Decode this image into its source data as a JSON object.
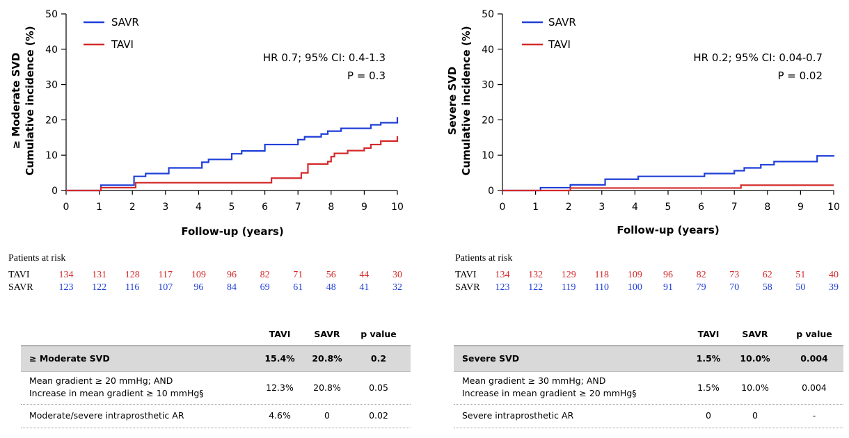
{
  "colors": {
    "savr": "#1f3fd8",
    "tavi": "#d42a2a",
    "axis": "#000000"
  },
  "chart_data": [
    {
      "type": "line",
      "subtype": "kaplan-meier step",
      "ylabel_line1": "≥ Moderate SVD",
      "ylabel_line2": "Cumulative incidence (%)",
      "xlabel": "Follow-up (years)",
      "xlim": [
        0,
        10
      ],
      "ylim": [
        0,
        50
      ],
      "xticks": [
        0,
        1,
        2,
        3,
        4,
        5,
        6,
        7,
        8,
        9,
        10
      ],
      "yticks": [
        0,
        10,
        20,
        30,
        40,
        50
      ],
      "legend_position": "top-left",
      "annotation_line1": "HR 0.7; 95% CI: 0.4-1.3",
      "annotation_line2": "P = 0.3",
      "series": [
        {
          "name": "SAVR",
          "color": "#1f3fd8",
          "x": [
            0,
            1.0,
            1.05,
            2.0,
            2.05,
            2.3,
            2.4,
            3.0,
            3.1,
            4.0,
            4.1,
            4.3,
            4.8,
            5.0,
            5.3,
            5.9,
            6.0,
            6.8,
            7.0,
            7.2,
            7.7,
            7.9,
            8.3,
            9.0,
            9.2,
            9.5,
            10.0
          ],
          "y": [
            0,
            0,
            1.5,
            1.5,
            4.0,
            4.0,
            4.8,
            4.8,
            6.4,
            6.4,
            8.0,
            8.8,
            8.8,
            10.4,
            11.2,
            11.2,
            13.0,
            13.0,
            14.4,
            15.2,
            16.0,
            16.8,
            17.6,
            17.6,
            18.6,
            19.2,
            20.8
          ]
        },
        {
          "name": "TAVI",
          "color": "#d42a2a",
          "x": [
            0,
            1.0,
            1.05,
            2.0,
            2.1,
            6.0,
            6.2,
            7.0,
            7.1,
            7.3,
            7.9,
            8.0,
            8.1,
            8.5,
            9.0,
            9.2,
            9.5,
            10.0
          ],
          "y": [
            0,
            0,
            0.8,
            0.8,
            2.2,
            2.2,
            3.5,
            3.5,
            5.0,
            7.5,
            8.2,
            9.6,
            10.5,
            11.3,
            12.0,
            13.0,
            14.0,
            15.4
          ]
        }
      ],
      "risk_table": {
        "title": "Patients at risk",
        "rows": [
          {
            "label": "TAVI",
            "color": "#d42a2a",
            "values": [
              "134",
              "131",
              "128",
              "117",
              "109",
              "96",
              "82",
              "71",
              "56",
              "44",
              "30"
            ]
          },
          {
            "label": "SAVR",
            "color": "#1f3fd8",
            "values": [
              "123",
              "122",
              "116",
              "107",
              "96",
              "84",
              "69",
              "61",
              "48",
              "41",
              "32"
            ]
          }
        ]
      },
      "summary_table": {
        "headers": [
          "TAVI",
          "SAVR",
          "p value"
        ],
        "rows": [
          {
            "label": "≥ Moderate SVD",
            "label2": "",
            "values": [
              "15.4%",
              "20.8%",
              "0.2"
            ],
            "bold": true
          },
          {
            "label": "Mean gradient ≥ 20 mmHg; AND",
            "label2": "Increase in mean gradient ≥ 10 mmHg§",
            "values": [
              "12.3%",
              "20.8%",
              "0.05"
            ],
            "bold": false
          },
          {
            "label": "Moderate/severe intraprosthetic AR",
            "label2": "",
            "values": [
              "4.6%",
              "0",
              "0.02"
            ],
            "bold": false
          }
        ]
      }
    },
    {
      "type": "line",
      "subtype": "kaplan-meier step",
      "ylabel_line1": "Severe SVD",
      "ylabel_line2": "Cumulative incidence (%)",
      "xlabel": "Follow-up (years)",
      "xlim": [
        0,
        10
      ],
      "ylim": [
        0,
        50
      ],
      "xticks": [
        0,
        1,
        2,
        3,
        4,
        5,
        6,
        7,
        8,
        9,
        10
      ],
      "yticks": [
        0,
        10,
        20,
        30,
        40,
        50
      ],
      "legend_position": "top-left",
      "annotation_line1": "HR 0.2; 95% CI: 0.04-0.7",
      "annotation_line2": "P = 0.02",
      "series": [
        {
          "name": "SAVR",
          "color": "#1f3fd8",
          "x": [
            0,
            1.1,
            1.15,
            2.0,
            2.05,
            3.0,
            3.1,
            4.0,
            4.1,
            6.0,
            6.1,
            6.8,
            7.0,
            7.3,
            7.8,
            8.2,
            9.3,
            9.5,
            10.0
          ],
          "y": [
            0,
            0,
            0.8,
            0.8,
            1.6,
            1.6,
            3.2,
            3.2,
            4.0,
            4.0,
            4.8,
            4.8,
            5.6,
            6.4,
            7.3,
            8.2,
            8.2,
            9.8,
            10.0
          ]
        },
        {
          "name": "TAVI",
          "color": "#d42a2a",
          "x": [
            0,
            2.0,
            2.05,
            7.1,
            7.2,
            10.0
          ],
          "y": [
            0,
            0,
            0.7,
            0.7,
            1.5,
            1.5
          ]
        }
      ],
      "risk_table": {
        "title": "Patients at risk",
        "rows": [
          {
            "label": "TAVI",
            "color": "#d42a2a",
            "values": [
              "134",
              "132",
              "129",
              "118",
              "109",
              "96",
              "82",
              "73",
              "62",
              "51",
              "40"
            ]
          },
          {
            "label": "SAVR",
            "color": "#1f3fd8",
            "values": [
              "123",
              "122",
              "119",
              "110",
              "100",
              "91",
              "79",
              "70",
              "58",
              "50",
              "39"
            ]
          }
        ]
      },
      "summary_table": {
        "headers": [
          "TAVI",
          "SAVR",
          "p value"
        ],
        "rows": [
          {
            "label": "Severe SVD",
            "label2": "",
            "values": [
              "1.5%",
              "10.0%",
              "0.004"
            ],
            "bold": true
          },
          {
            "label": "Mean gradient ≥ 30 mmHg; AND",
            "label2": "Increase in mean gradient ≥ 20 mmHg§",
            "values": [
              "1.5%",
              "10.0%",
              "0.004"
            ],
            "bold": false
          },
          {
            "label": "Severe intraprosthetic AR",
            "label2": "",
            "values": [
              "0",
              "0",
              "-"
            ],
            "bold": false
          }
        ]
      }
    }
  ]
}
